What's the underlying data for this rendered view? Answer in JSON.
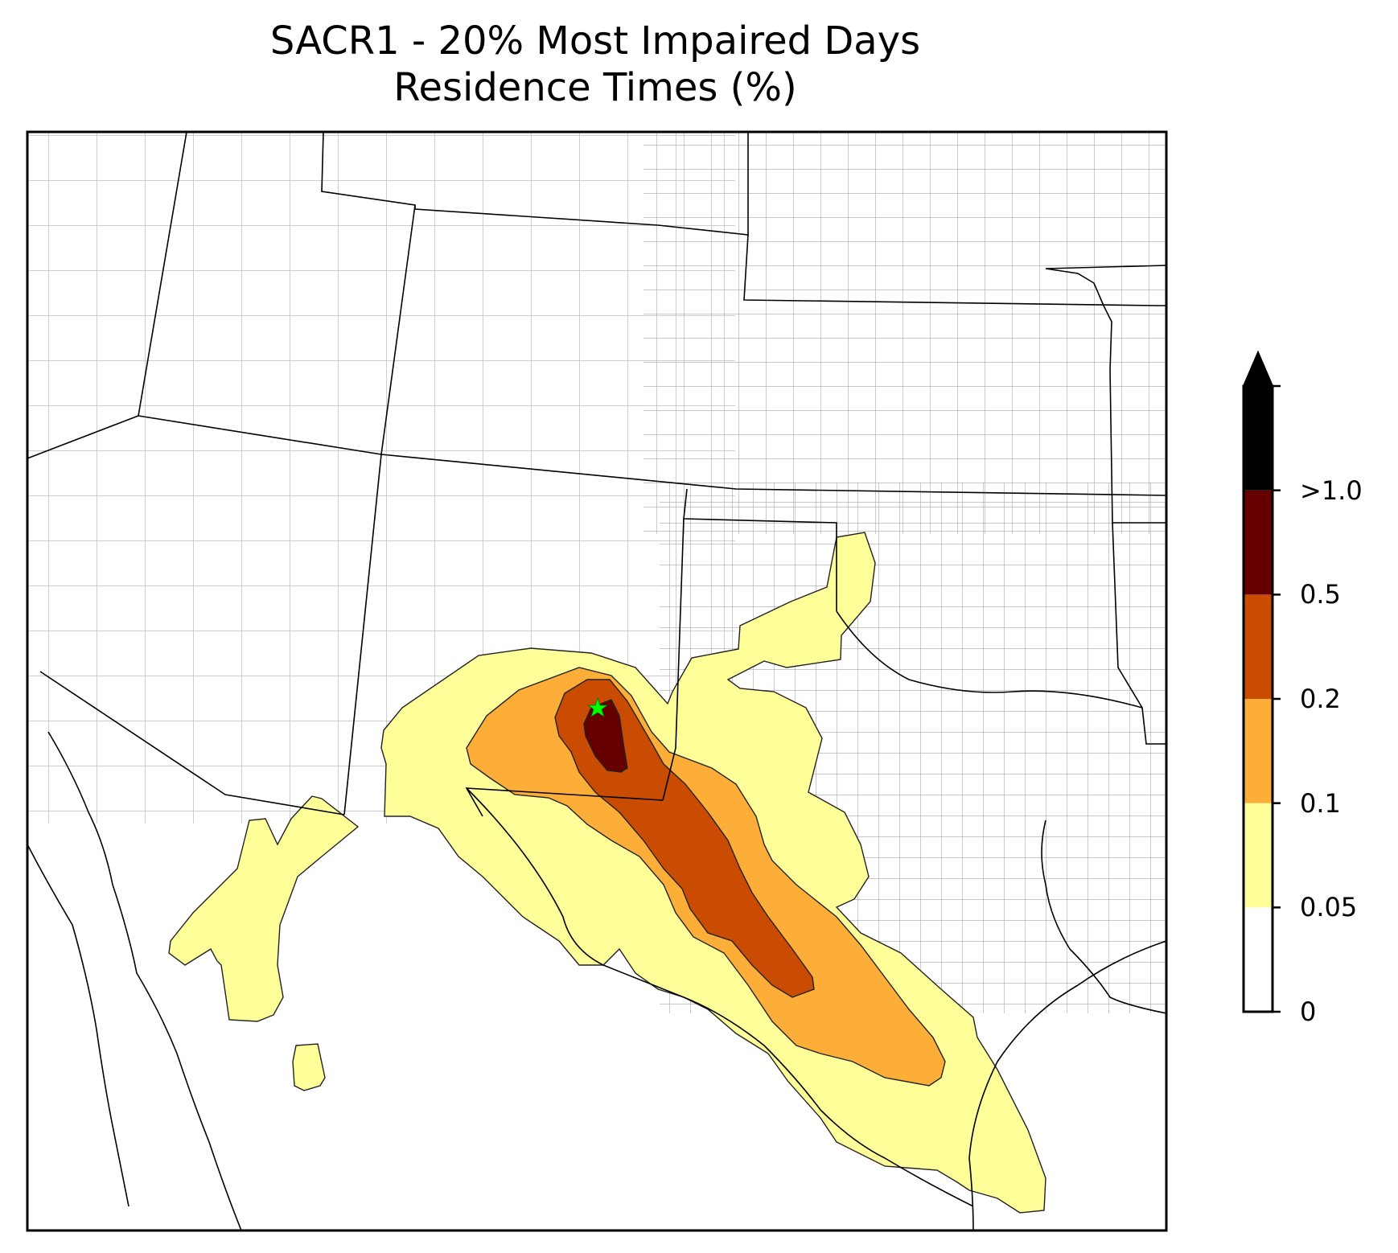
{
  "title": {
    "line1": "SACR1 - 20% Most Impaired Days",
    "line2": "Residence Times (%)"
  },
  "colorbar": {
    "bins": [
      {
        "from": "0",
        "to": "0.05",
        "color": "#ffffff"
      },
      {
        "from": "0.05",
        "to": "0.1",
        "color": "#ffff99"
      },
      {
        "from": "0.1",
        "to": "0.2",
        "color": "#fdae38"
      },
      {
        "from": "0.2",
        "to": "0.5",
        "color": "#c94c02"
      },
      {
        "from": "0.5",
        "to": "1.0",
        "color": "#660000"
      },
      {
        "from": "1.0",
        "to": "max",
        "color": "#000000"
      }
    ],
    "tick_labels": [
      "0",
      "0.05",
      "0.1",
      "0.2",
      "0.5",
      ">1.0"
    ],
    "extend": "max"
  },
  "map": {
    "region": "Southwestern United States and northern Mexico",
    "site_marker": {
      "symbol": "star",
      "color": "#00ff00"
    }
  }
}
